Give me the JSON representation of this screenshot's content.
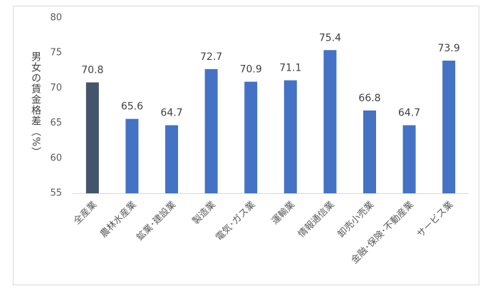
{
  "chart_data": {
    "type": "bar",
    "y_label": "男女の賃金格差（%）",
    "categories": [
      "全産業",
      "農林水産業",
      "鉱業･建設業",
      "製造業",
      "電気･ガス業",
      "運輸業",
      "情報通信業",
      "卸売小売業",
      "金融･保険･不動産業",
      "サービス業"
    ],
    "values": [
      70.8,
      65.6,
      64.7,
      72.7,
      70.9,
      71.1,
      75.4,
      66.8,
      64.7,
      73.9
    ],
    "colors": [
      "#44546a",
      "#4472c4",
      "#4472c4",
      "#4472c4",
      "#4472c4",
      "#4472c4",
      "#4472c4",
      "#4472c4",
      "#4472c4",
      "#4472c4"
    ],
    "ylim": [
      55,
      80
    ],
    "yticks": [
      55,
      60,
      65,
      70,
      75,
      80
    ],
    "grid": false
  }
}
